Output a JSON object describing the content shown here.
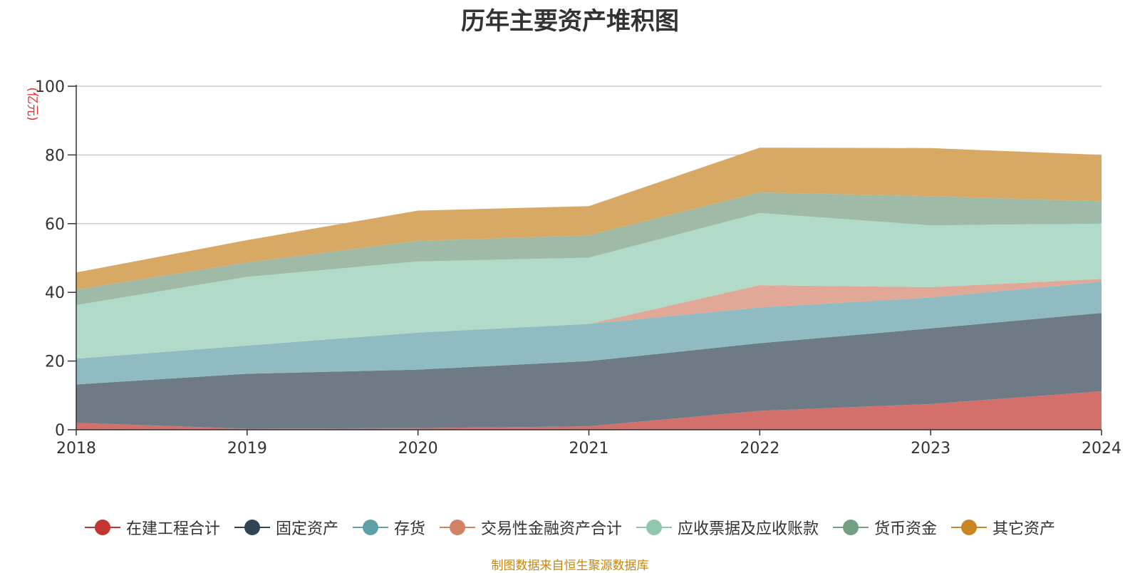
{
  "chart_data": {
    "type": "area",
    "stacked": true,
    "title": "历年主要资产堆积图",
    "unit_label": "(亿元)",
    "x": [
      "2018",
      "2019",
      "2020",
      "2021",
      "2022",
      "2023",
      "2024"
    ],
    "ylim": [
      0,
      100
    ],
    "yticks": [
      0,
      20,
      40,
      60,
      80,
      100
    ],
    "grid": true,
    "legend_position": "bottom",
    "series": [
      {
        "name": "在建工程合计",
        "color": "#c23531",
        "fill": "#d4706c",
        "values": [
          2,
          0.3,
          0.5,
          1,
          5.5,
          7.5,
          11.2
        ]
      },
      {
        "name": "固定资产",
        "color": "#2f4554",
        "fill": "#6e7b86",
        "values": [
          11.2,
          16,
          17,
          19,
          19.7,
          22,
          22.8
        ]
      },
      {
        "name": "存货",
        "color": "#61a0a8",
        "fill": "#90bbc2",
        "values": [
          7.5,
          8.2,
          10.8,
          10.8,
          10.4,
          9,
          9.1
        ]
      },
      {
        "name": "交易性金融资产合计",
        "color": "#d48265",
        "fill": "#e1a897",
        "values": [
          0,
          0,
          0,
          0,
          6.5,
          3,
          0.8
        ]
      },
      {
        "name": "应收票据及应收账款",
        "color": "#91c7ae",
        "fill": "#b2dac8",
        "values": [
          15.6,
          20,
          20.7,
          19.3,
          21,
          18,
          16.1
        ]
      },
      {
        "name": "货币资金",
        "color": "#749f83",
        "fill": "#9fbba7",
        "values": [
          4.5,
          4.2,
          6,
          6.5,
          6,
          8.5,
          6.5
        ]
      },
      {
        "name": "其它资产",
        "color": "#ca8622",
        "fill": "#d8a965",
        "values": [
          5,
          6.5,
          8.8,
          8.5,
          13,
          14,
          13.5
        ]
      }
    ]
  },
  "source_note": "制图数据来自恒生聚源数据库"
}
